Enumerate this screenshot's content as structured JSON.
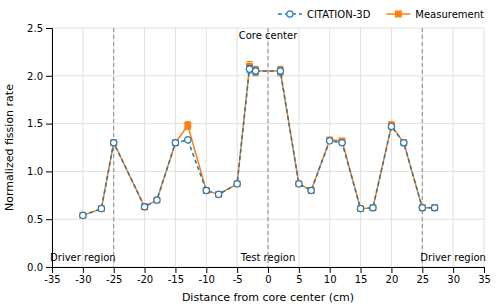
{
  "chart_data": {
    "type": "line",
    "x_label": "Distance from core center (cm)",
    "y_label": "Normalized fission rate",
    "x": [
      -30,
      -27,
      -25,
      -20,
      -18,
      -15,
      -13,
      -10,
      -8,
      -5,
      -3,
      -2,
      2,
      5,
      7,
      10,
      12,
      15,
      17,
      20,
      22,
      25,
      27
    ],
    "series": [
      {
        "name": "CITATION-3D",
        "marker": "open-circle",
        "line_style": "dashed",
        "values": [
          0.54,
          0.61,
          1.3,
          0.63,
          0.7,
          1.3,
          1.33,
          0.8,
          0.76,
          0.87,
          2.07,
          2.05,
          2.05,
          0.87,
          0.8,
          1.32,
          1.3,
          0.61,
          0.62,
          1.47,
          1.3,
          0.62,
          0.62
        ],
        "errors": [
          0.02,
          0.02,
          0.02,
          0.02,
          0.02,
          0.02,
          0.02,
          0.02,
          0.02,
          0.02,
          0.04,
          0.04,
          0.04,
          0.02,
          0.02,
          0.02,
          0.02,
          0.02,
          0.02,
          0.02,
          0.02,
          0.02,
          0.02
        ]
      },
      {
        "name": "Measurement",
        "marker": "square",
        "line_style": "solid",
        "values": [
          0.54,
          0.61,
          1.3,
          0.63,
          0.7,
          1.3,
          1.48,
          0.8,
          0.76,
          0.87,
          2.1,
          2.05,
          2.05,
          0.87,
          0.8,
          1.33,
          1.32,
          0.61,
          0.62,
          1.48,
          1.3,
          0.62,
          0.62
        ],
        "errors": [
          0.02,
          0.02,
          0.02,
          0.02,
          0.02,
          0.02,
          0.04,
          0.02,
          0.02,
          0.02,
          0.05,
          0.05,
          0.05,
          0.02,
          0.02,
          0.02,
          0.02,
          0.02,
          0.02,
          0.04,
          0.02,
          0.02,
          0.02
        ]
      }
    ],
    "vlines": [
      -25,
      25,
      0
    ],
    "annotations": [
      {
        "text": "Driver region",
        "x": -30,
        "y": 0.04
      },
      {
        "text": "Test region",
        "x": 0,
        "y": 0.04
      },
      {
        "text": "Driver region",
        "x": 30,
        "y": 0.04
      },
      {
        "text": "Core center",
        "x": 0,
        "y": 2.48
      }
    ],
    "xlim": [
      -35,
      35
    ],
    "ylim": [
      0.0,
      2.5
    ],
    "xticks": [
      -35,
      -30,
      -25,
      -20,
      -15,
      -10,
      -5,
      0,
      5,
      10,
      15,
      20,
      25,
      30,
      35
    ],
    "yticks": [
      {
        "value": 0.0,
        "label": "0.0"
      },
      {
        "value": 0.5,
        "label": "0.5"
      },
      {
        "value": 1.0,
        "label": "1.0"
      },
      {
        "value": 1.5,
        "label": "1.5"
      },
      {
        "value": 2.0,
        "label": "2.0"
      },
      {
        "value": 2.5,
        "label": "2.5"
      }
    ],
    "grid": true,
    "legend": "upper right"
  }
}
